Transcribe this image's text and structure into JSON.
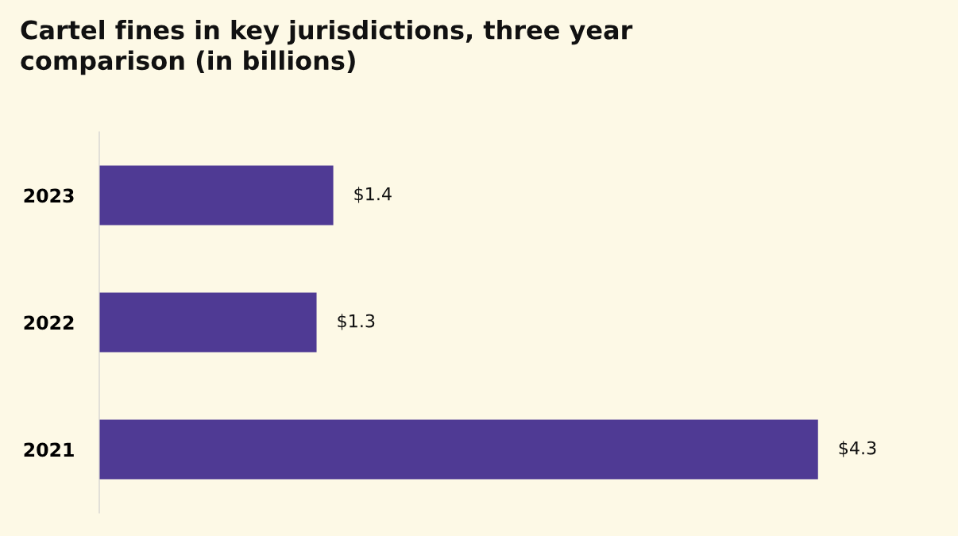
{
  "chart_data": {
    "type": "bar",
    "orientation": "horizontal",
    "title": "Cartel fines in key jurisdictions, three year\ncomparison (in billions)",
    "categories": [
      "2023",
      "2022",
      "2021"
    ],
    "values": [
      1.4,
      1.3,
      4.3
    ],
    "value_labels": [
      "$1.4",
      "$1.3",
      "$4.3"
    ],
    "color": "#4f3a94",
    "grid": false,
    "legend": false,
    "tick_labels": "y"
  }
}
